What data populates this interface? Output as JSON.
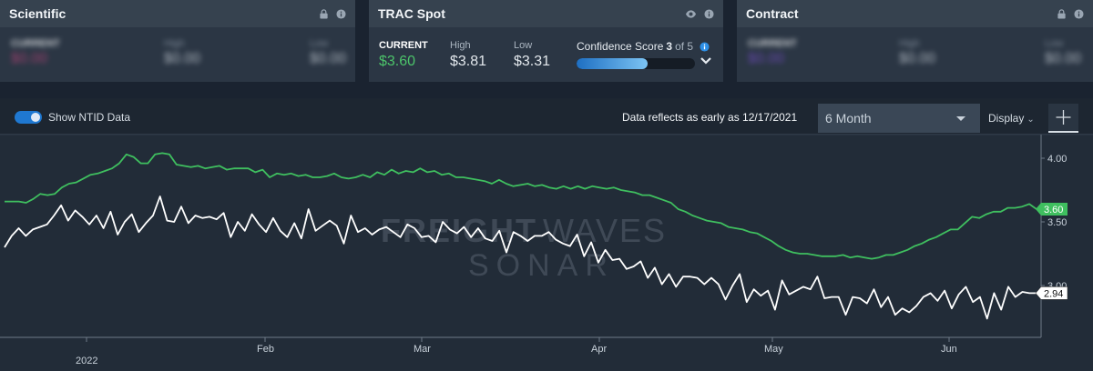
{
  "cards": {
    "scientific": {
      "title": "Scientific",
      "current_label": "CURRENT",
      "current_value": "$0.00",
      "high_label": "High",
      "high_value": "$0.00",
      "low_label": "Low",
      "low_value": "$0.00",
      "current_color": "#c4457c"
    },
    "trac": {
      "title": "TRAC Spot",
      "current_label": "CURRENT",
      "current_value": "$3.60",
      "high_label": "High",
      "high_value": "$3.81",
      "low_label": "Low",
      "low_value": "$3.31",
      "confidence_label": "Confidence Score",
      "confidence_score": "3",
      "confidence_of": "of 5",
      "confidence_fraction": 0.6
    },
    "contract": {
      "title": "Contract",
      "current_label": "CURRENT",
      "current_value": "$0.00",
      "high_label": "High",
      "high_value": "$0.00",
      "low_label": "Low",
      "low_value": "$0.00",
      "current_color": "#7a4fd0"
    }
  },
  "toolbar": {
    "toggle_label": "Show NTID Data",
    "toggle_on": true,
    "data_reflects": "Data reflects as early as 12/17/2021",
    "range_selected": "6 Month",
    "display_label": "Display"
  },
  "watermark": {
    "line1_bold": "FREIGHT",
    "line1_light": "WAVES",
    "line2": "SONAR"
  },
  "chart_data": {
    "type": "line",
    "x_labels": [
      "2022",
      "Feb",
      "Mar",
      "Apr",
      "May",
      "Jun"
    ],
    "y_ticks": [
      "4.00",
      "3.50",
      "3.00"
    ],
    "ylim": [
      2.55,
      4.2
    ],
    "colors": {
      "green": "#3fbf5f",
      "white": "#ffffff"
    },
    "series": [
      {
        "label": "3.60",
        "color": "#3fbf5f",
        "values": [
          3.66,
          3.66,
          3.66,
          3.65,
          3.68,
          3.72,
          3.71,
          3.72,
          3.77,
          3.8,
          3.81,
          3.84,
          3.87,
          3.88,
          3.9,
          3.92,
          3.96,
          4.03,
          4.01,
          3.96,
          3.96,
          4.03,
          4.04,
          4.03,
          3.95,
          3.94,
          3.93,
          3.94,
          3.92,
          3.93,
          3.94,
          3.91,
          3.92,
          3.92,
          3.92,
          3.89,
          3.91,
          3.85,
          3.88,
          3.87,
          3.88,
          3.86,
          3.87,
          3.85,
          3.85,
          3.86,
          3.88,
          3.85,
          3.84,
          3.85,
          3.87,
          3.85,
          3.89,
          3.87,
          3.91,
          3.88,
          3.9,
          3.89,
          3.92,
          3.89,
          3.9,
          3.87,
          3.88,
          3.85,
          3.85,
          3.84,
          3.83,
          3.82,
          3.8,
          3.83,
          3.8,
          3.78,
          3.79,
          3.8,
          3.78,
          3.79,
          3.77,
          3.76,
          3.78,
          3.76,
          3.78,
          3.76,
          3.78,
          3.77,
          3.76,
          3.77,
          3.75,
          3.74,
          3.73,
          3.71,
          3.71,
          3.69,
          3.67,
          3.65,
          3.6,
          3.58,
          3.55,
          3.53,
          3.51,
          3.5,
          3.49,
          3.46,
          3.45,
          3.44,
          3.42,
          3.41,
          3.38,
          3.35,
          3.31,
          3.28,
          3.26,
          3.25,
          3.25,
          3.24,
          3.23,
          3.23,
          3.23,
          3.24,
          3.22,
          3.23,
          3.22,
          3.21,
          3.22,
          3.24,
          3.24,
          3.26,
          3.28,
          3.31,
          3.33,
          3.36,
          3.38,
          3.41,
          3.44,
          3.44,
          3.49,
          3.54,
          3.53,
          3.56,
          3.58,
          3.58,
          3.61,
          3.61,
          3.62,
          3.64,
          3.6
        ]
      },
      {
        "label": "2.94",
        "color": "#ffffff",
        "values": [
          3.3,
          3.39,
          3.45,
          3.39,
          3.44,
          3.46,
          3.48,
          3.55,
          3.63,
          3.51,
          3.59,
          3.54,
          3.48,
          3.55,
          3.45,
          3.58,
          3.4,
          3.5,
          3.56,
          3.42,
          3.49,
          3.55,
          3.7,
          3.51,
          3.5,
          3.62,
          3.49,
          3.55,
          3.53,
          3.54,
          3.52,
          3.57,
          3.38,
          3.5,
          3.43,
          3.56,
          3.48,
          3.42,
          3.53,
          3.43,
          3.38,
          3.49,
          3.37,
          3.6,
          3.43,
          3.47,
          3.51,
          3.47,
          3.33,
          3.55,
          3.42,
          3.45,
          3.4,
          3.44,
          3.46,
          3.42,
          3.38,
          3.48,
          3.45,
          3.38,
          3.39,
          3.34,
          3.5,
          3.44,
          3.41,
          3.46,
          3.38,
          3.45,
          3.37,
          3.35,
          3.43,
          3.26,
          3.42,
          3.39,
          3.35,
          3.39,
          3.39,
          3.42,
          3.36,
          3.33,
          3.31,
          3.4,
          3.23,
          3.34,
          3.18,
          3.28,
          3.2,
          3.21,
          3.13,
          3.15,
          3.19,
          3.06,
          3.14,
          3.01,
          3.09,
          2.99,
          3.07,
          3.07,
          3.06,
          3.01,
          3.06,
          3.01,
          2.89,
          3.0,
          3.09,
          2.87,
          2.97,
          2.92,
          2.96,
          2.81,
          3.04,
          2.93,
          2.96,
          2.99,
          2.97,
          3.07,
          2.9,
          2.91,
          2.91,
          2.77,
          2.91,
          2.9,
          2.86,
          2.97,
          2.83,
          2.91,
          2.77,
          2.82,
          2.79,
          2.84,
          2.91,
          2.94,
          2.88,
          2.96,
          2.82,
          2.93,
          2.99,
          2.87,
          2.91,
          2.74,
          2.94,
          2.81,
          2.99,
          2.91,
          2.95,
          2.94,
          2.94
        ]
      }
    ]
  }
}
